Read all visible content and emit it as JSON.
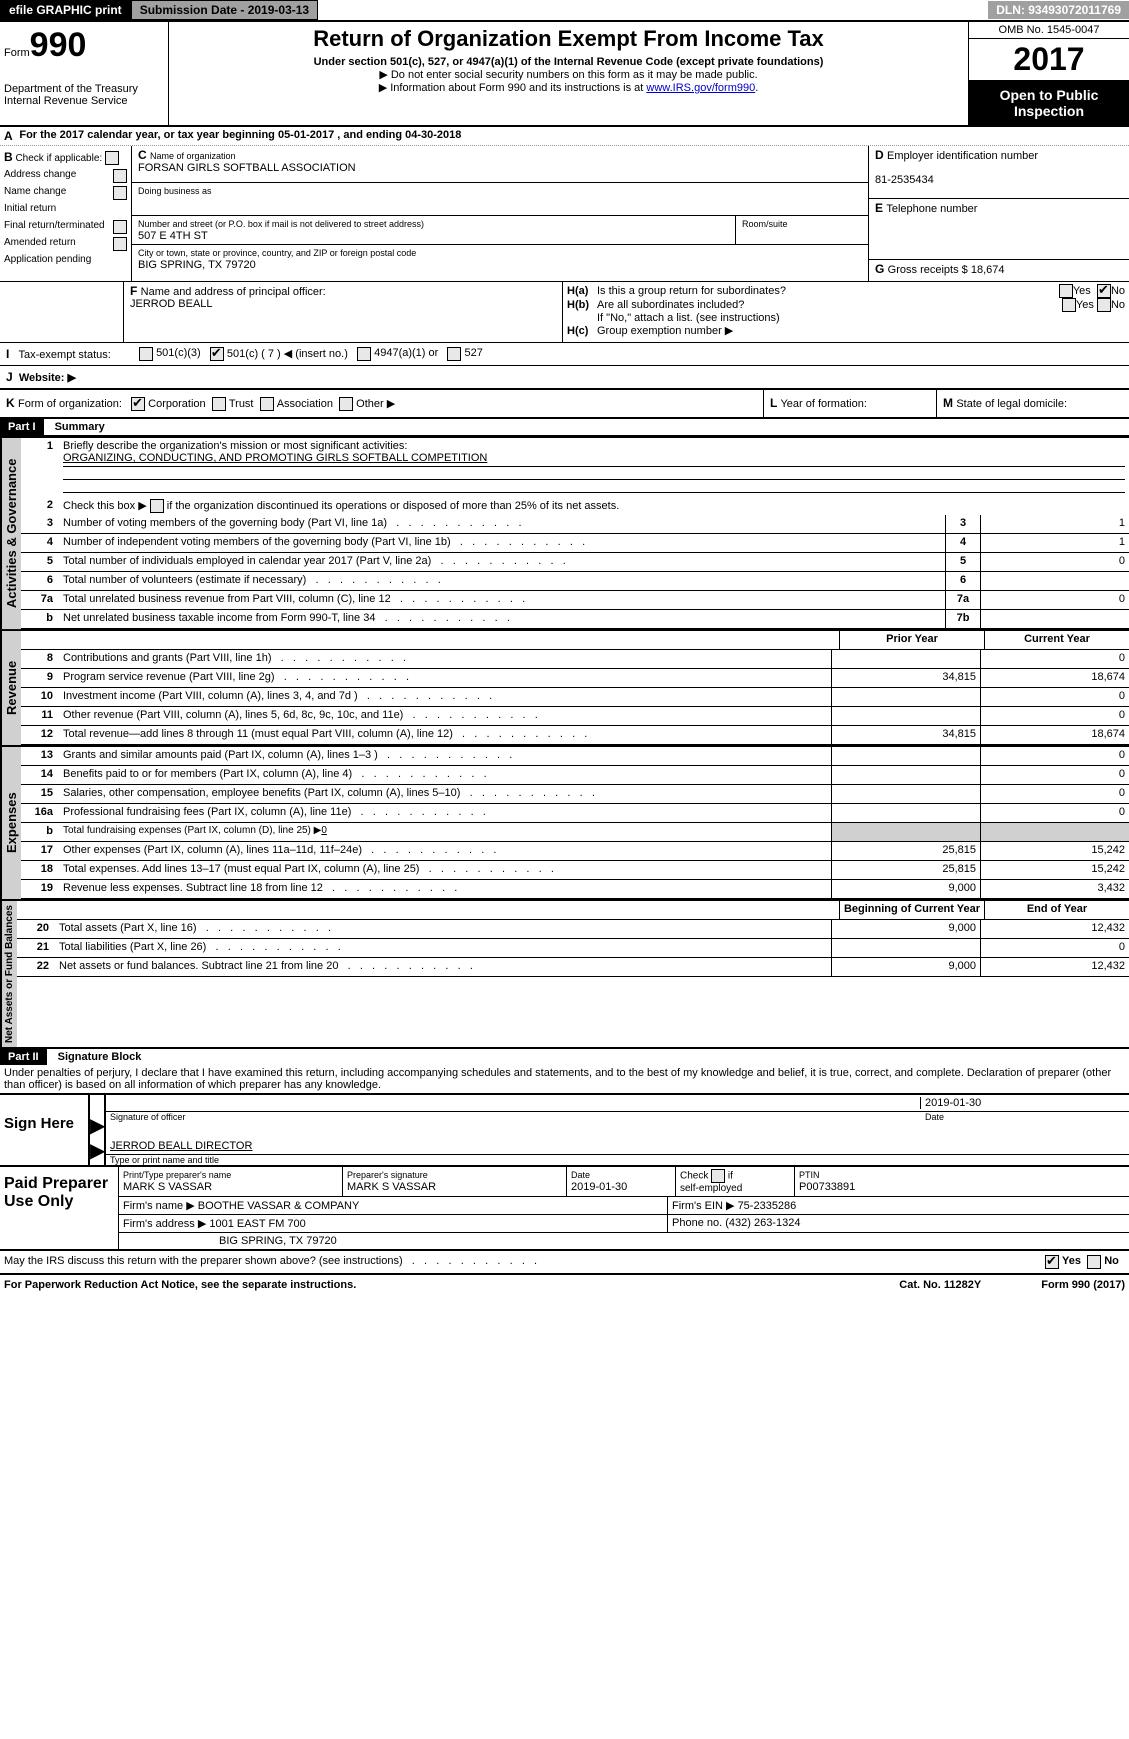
{
  "top": {
    "efile": "efile GRAPHIC print",
    "submission_date_label": "Submission Date - 2019-03-13",
    "dln": "DLN: 93493072011769"
  },
  "header": {
    "form_prefix": "Form",
    "form_number": "990",
    "dept1": "Department of the Treasury",
    "dept2": "Internal Revenue Service",
    "title": "Return of Organization Exempt From Income Tax",
    "subtitle1": "Under section 501(c), 527, or 4947(a)(1) of the Internal Revenue Code (except private foundations)",
    "subtitle2": "▶ Do not enter social security numbers on this form as it may be made public.",
    "subtitle3_pre": "▶ Information about Form 990 and its instructions is at",
    "subtitle3_link": "www.IRS.gov/form990",
    "omb": "OMB No. 1545-0047",
    "year": "2017",
    "open_public1": "Open to Public",
    "open_public2": "Inspection"
  },
  "section_a": {
    "text": "For the 2017 calendar year, or tax year beginning 05-01-2017        , and ending 04-30-2018"
  },
  "section_b": {
    "label": "Check if applicable:",
    "items": [
      "Address change",
      "Name change",
      "Initial return",
      "Final return/terminated",
      "Amended return",
      "Application pending"
    ]
  },
  "section_c": {
    "name_label": "Name of organization",
    "name": "FORSAN GIRLS SOFTBALL ASSOCIATION",
    "dba_label": "Doing business as",
    "dba": "",
    "street_label": "Number and street (or P.O. box if mail is not delivered to street address)",
    "street": "507 E 4TH ST",
    "room_label": "Room/suite",
    "city_label": "City or town, state or province, country, and ZIP or foreign postal code",
    "city": "BIG SPRING, TX   79720"
  },
  "section_d": {
    "label": "Employer identification number",
    "value": "81-2535434"
  },
  "section_e": {
    "label": "Telephone number",
    "value": ""
  },
  "section_f": {
    "label": "Name and address of principal officer:",
    "value": "JERROD BEALL"
  },
  "section_g": {
    "label": "Gross receipts $",
    "value": "18,674"
  },
  "section_h": {
    "a_label": "Is this a group return for subordinates?",
    "b_label": "Are all subordinates included?",
    "b_note": "If \"No,\" attach a list. (see instructions)",
    "c_label": "Group exemption number ▶",
    "yes": "Yes",
    "no": "No"
  },
  "section_i": {
    "label": "Tax-exempt status:",
    "opts": [
      "501(c)(3)",
      "501(c) ( 7 ) ◀ (insert no.)",
      "4947(a)(1) or",
      "527"
    ]
  },
  "section_j": {
    "label": "Website: ▶"
  },
  "section_k": {
    "label": "Form of organization:",
    "opts": [
      "Corporation",
      "Trust",
      "Association",
      "Other ▶"
    ]
  },
  "section_l": {
    "label": "Year of formation:"
  },
  "section_m": {
    "label": "State of legal domicile:"
  },
  "part1": {
    "header": "Part I",
    "title": "Summary",
    "line1_label": "Briefly describe the organization's mission or most significant activities:",
    "line1_value": "ORGANIZING, CONDUCTING, AND PROMOTING GIRLS SOFTBALL COMPETITION",
    "line2_label": "Check this box ▶",
    "line2_text": "if the organization discontinued its operations or disposed of more than 25% of its net assets.",
    "lines_governance": [
      {
        "num": "3",
        "text": "Number of voting members of the governing body (Part VI, line 1a)",
        "box": "3",
        "val": "1"
      },
      {
        "num": "4",
        "text": "Number of independent voting members of the governing body (Part VI, line 1b)",
        "box": "4",
        "val": "1"
      },
      {
        "num": "5",
        "text": "Total number of individuals employed in calendar year 2017 (Part V, line 2a)",
        "box": "5",
        "val": "0"
      },
      {
        "num": "6",
        "text": "Total number of volunteers (estimate if necessary)",
        "box": "6",
        "val": ""
      },
      {
        "num": "7a",
        "text": "Total unrelated business revenue from Part VIII, column (C), line 12",
        "box": "7a",
        "val": "0"
      },
      {
        "num": "b",
        "text": "Net unrelated business taxable income from Form 990-T, line 34",
        "box": "7b",
        "val": ""
      }
    ],
    "prior_year": "Prior Year",
    "current_year": "Current Year",
    "lines_revenue": [
      {
        "num": "8",
        "text": "Contributions and grants (Part VIII, line 1h)",
        "prior": "",
        "curr": "0"
      },
      {
        "num": "9",
        "text": "Program service revenue (Part VIII, line 2g)",
        "prior": "34,815",
        "curr": "18,674"
      },
      {
        "num": "10",
        "text": "Investment income (Part VIII, column (A), lines 3, 4, and 7d )",
        "prior": "",
        "curr": "0"
      },
      {
        "num": "11",
        "text": "Other revenue (Part VIII, column (A), lines 5, 6d, 8c, 9c, 10c, and 11e)",
        "prior": "",
        "curr": "0"
      },
      {
        "num": "12",
        "text": "Total revenue—add lines 8 through 11 (must equal Part VIII, column (A), line 12)",
        "prior": "34,815",
        "curr": "18,674"
      }
    ],
    "lines_expenses": [
      {
        "num": "13",
        "text": "Grants and similar amounts paid (Part IX, column (A), lines 1–3 )",
        "prior": "",
        "curr": "0"
      },
      {
        "num": "14",
        "text": "Benefits paid to or for members (Part IX, column (A), line 4)",
        "prior": "",
        "curr": "0"
      },
      {
        "num": "15",
        "text": "Salaries, other compensation, employee benefits (Part IX, column (A), lines 5–10)",
        "prior": "",
        "curr": "0"
      },
      {
        "num": "16a",
        "text": "Professional fundraising fees (Part IX, column (A), line 11e)",
        "prior": "",
        "curr": "0"
      }
    ],
    "line16b": {
      "num": "b",
      "text": "Total fundraising expenses (Part IX, column (D), line 25) ▶",
      "val": "0"
    },
    "lines_expenses2": [
      {
        "num": "17",
        "text": "Other expenses (Part IX, column (A), lines 11a–11d, 11f–24e)",
        "prior": "25,815",
        "curr": "15,242"
      },
      {
        "num": "18",
        "text": "Total expenses. Add lines 13–17 (must equal Part IX, column (A), line 25)",
        "prior": "25,815",
        "curr": "15,242"
      },
      {
        "num": "19",
        "text": "Revenue less expenses. Subtract line 18 from line 12",
        "prior": "9,000",
        "curr": "3,432"
      }
    ],
    "begin_year": "Beginning of Current Year",
    "end_year": "End of Year",
    "lines_netassets": [
      {
        "num": "20",
        "text": "Total assets (Part X, line 16)",
        "prior": "9,000",
        "curr": "12,432"
      },
      {
        "num": "21",
        "text": "Total liabilities (Part X, line 26)",
        "prior": "",
        "curr": "0"
      },
      {
        "num": "22",
        "text": "Net assets or fund balances. Subtract line 21 from line 20",
        "prior": "9,000",
        "curr": "12,432"
      }
    ],
    "vert_labels": {
      "governance": "Activities & Governance",
      "revenue": "Revenue",
      "expenses": "Expenses",
      "netassets": "Net Assets or Fund Balances"
    }
  },
  "part2": {
    "header": "Part II",
    "title": "Signature Block",
    "declaration": "Under penalties of perjury, I declare that I have examined this return, including accompanying schedules and statements, and to the best of my knowledge and belief, it is true, correct, and complete. Declaration of preparer (other than officer) is based on all information of which preparer has any knowledge.",
    "sign_here": "Sign Here",
    "sig_officer": "Signature of officer",
    "sig_date": "2019-01-30",
    "date_label": "Date",
    "officer_name": "JERROD BEALL  DIRECTOR",
    "type_name": "Type or print name and title",
    "paid_preparer": "Paid Preparer Use Only",
    "preparer_name_label": "Print/Type preparer's name",
    "preparer_name": "MARK S VASSAR",
    "preparer_sig_label": "Preparer's signature",
    "preparer_sig": "MARK S VASSAR",
    "prep_date_label": "Date",
    "prep_date": "2019-01-30",
    "check_if": "Check",
    "self_emp": "self-employed",
    "if": "if",
    "ptin_label": "PTIN",
    "ptin": "P00733891",
    "firm_name_label": "Firm's name    ▶",
    "firm_name": "BOOTHE VASSAR & COMPANY",
    "firm_ein_label": "Firm's EIN ▶",
    "firm_ein": "75-2335286",
    "firm_addr_label": "Firm's address ▶",
    "firm_addr1": "1001 EAST FM 700",
    "firm_addr2": "BIG SPRING, TX  79720",
    "phone_label": "Phone no.",
    "phone": "(432) 263-1324",
    "discuss": "May the IRS discuss this return with the preparer shown above? (see instructions)"
  },
  "footer": {
    "paperwork": "For Paperwork Reduction Act Notice, see the separate instructions.",
    "cat": "Cat. No. 11282Y",
    "form": "Form 990 (2017)"
  }
}
